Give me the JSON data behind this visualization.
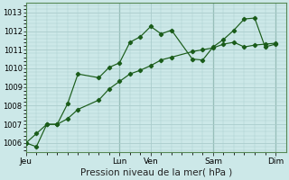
{
  "background_color": "#cce8e8",
  "grid_color": "#aacccc",
  "line_color": "#1a5c1a",
  "marker_color": "#1a5c1a",
  "xlabel": "Pression niveau de la mer( hPa )",
  "ylim": [
    1005.5,
    1013.5
  ],
  "yticks": [
    1006,
    1007,
    1008,
    1009,
    1010,
    1011,
    1012,
    1013
  ],
  "xtick_labels": [
    "Jeu",
    "Lun",
    "Ven",
    "Sam",
    "Dim"
  ],
  "xtick_positions": [
    0,
    9,
    12,
    18,
    24
  ],
  "xlim": [
    0,
    25
  ],
  "series1_x": [
    0,
    1,
    2,
    3,
    4,
    5,
    7,
    8,
    9,
    10,
    11,
    12,
    13,
    14,
    16,
    17,
    18,
    19,
    20,
    21,
    22,
    23,
    24
  ],
  "series1_y": [
    1006.0,
    1005.8,
    1007.0,
    1007.0,
    1008.1,
    1009.7,
    1009.5,
    1010.05,
    1010.3,
    1011.4,
    1011.7,
    1012.25,
    1011.85,
    1012.05,
    1010.5,
    1010.45,
    1011.15,
    1011.55,
    1012.05,
    1012.65,
    1012.7,
    1011.15,
    1011.3
  ],
  "series2_x": [
    0,
    1,
    2,
    3,
    4,
    5,
    7,
    8,
    9,
    10,
    11,
    12,
    13,
    14,
    16,
    17,
    18,
    19,
    20,
    21,
    22,
    23,
    24
  ],
  "series2_y": [
    1006.0,
    1006.5,
    1007.0,
    1007.0,
    1007.3,
    1007.8,
    1008.3,
    1008.9,
    1009.3,
    1009.7,
    1009.9,
    1010.15,
    1010.45,
    1010.6,
    1010.9,
    1011.0,
    1011.1,
    1011.3,
    1011.4,
    1011.15,
    1011.25,
    1011.3,
    1011.35
  ],
  "vline_positions": [
    9,
    18,
    24
  ],
  "vline_dark": [
    9,
    12
  ],
  "ytick_fontsize": 6,
  "xtick_fontsize": 6.5,
  "xlabel_fontsize": 7.5
}
